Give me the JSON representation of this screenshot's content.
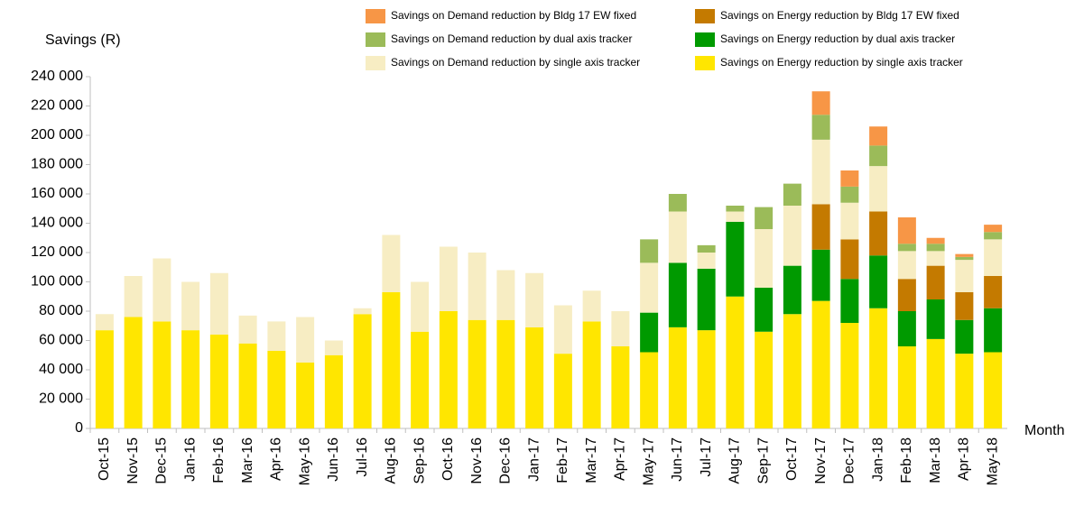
{
  "chart_data": {
    "type": "stacked_bar",
    "y_label": "Savings (R)",
    "x_label": "Month",
    "categories": [
      "Oct-15",
      "Nov-15",
      "Dec-15",
      "Jan-16",
      "Feb-16",
      "Mar-16",
      "Apr-16",
      "May-16",
      "Jun-16",
      "Jul-16",
      "Aug-16",
      "Sep-16",
      "Oct-16",
      "Nov-16",
      "Dec-16",
      "Jan-17",
      "Feb-17",
      "Mar-17",
      "Apr-17",
      "May-17",
      "Jun-17",
      "Jul-17",
      "Aug-17",
      "Sep-17",
      "Oct-17",
      "Nov-17",
      "Dec-17",
      "Jan-18",
      "Feb-18",
      "Mar-18",
      "Apr-18",
      "May-18"
    ],
    "series": [
      {
        "name": "Savings on Energy reduction by single axis tracker",
        "color": "#ffe600",
        "values": [
          67000,
          76000,
          73000,
          67000,
          64000,
          58000,
          53000,
          45000,
          50000,
          78000,
          93000,
          66000,
          80000,
          74000,
          74000,
          69000,
          51000,
          73000,
          56000,
          52000,
          69000,
          67000,
          90000,
          66000,
          78000,
          87000,
          72000,
          82000,
          56000,
          61000,
          51000,
          52000
        ]
      },
      {
        "name": "Savings on Energy reduction by dual axis tracker",
        "color": "#009a00",
        "values": [
          null,
          null,
          null,
          null,
          null,
          null,
          null,
          null,
          null,
          null,
          null,
          null,
          null,
          null,
          null,
          null,
          null,
          null,
          null,
          27000,
          44000,
          42000,
          51000,
          30000,
          33000,
          35000,
          30000,
          36000,
          24000,
          27000,
          23000,
          30000
        ]
      },
      {
        "name": "Savings on Energy reduction by Bldg 17 EW fixed",
        "color": "#c47a00",
        "values": [
          null,
          null,
          null,
          null,
          null,
          null,
          null,
          null,
          null,
          null,
          null,
          null,
          null,
          null,
          null,
          null,
          null,
          null,
          null,
          null,
          null,
          null,
          null,
          null,
          null,
          31000,
          27000,
          30000,
          22000,
          23000,
          19000,
          22000
        ]
      },
      {
        "name": "Savings on Demand reduction by single axis tracker",
        "color": "#f7edc3",
        "values": [
          11000,
          28000,
          43000,
          33000,
          42000,
          19000,
          20000,
          31000,
          10000,
          4000,
          39000,
          34000,
          44000,
          46000,
          34000,
          37000,
          33000,
          21000,
          24000,
          34000,
          35000,
          11000,
          7000,
          40000,
          41000,
          44000,
          25000,
          31000,
          19000,
          10000,
          22000,
          25000
        ]
      },
      {
        "name": "Savings on Demand reduction by dual axis tracker",
        "color": "#9bbb59",
        "values": [
          null,
          null,
          null,
          null,
          null,
          null,
          null,
          null,
          null,
          null,
          null,
          null,
          null,
          null,
          null,
          null,
          null,
          null,
          null,
          16000,
          12000,
          5000,
          4000,
          15000,
          15000,
          17000,
          11000,
          14000,
          5000,
          5000,
          2000,
          5000
        ]
      },
      {
        "name": "Savings on Demand reduction by Bldg 17 EW fixed",
        "color": "#f79646",
        "values": [
          null,
          null,
          null,
          null,
          null,
          null,
          null,
          null,
          null,
          null,
          null,
          null,
          null,
          null,
          null,
          null,
          null,
          null,
          null,
          null,
          null,
          null,
          null,
          null,
          null,
          16000,
          11000,
          13000,
          18000,
          4000,
          2000,
          5000
        ]
      }
    ],
    "ylim": [
      0,
      240000
    ],
    "yticks": [
      0,
      {
        "value": 20000,
        "label": "20 000"
      },
      {
        "value": 40000,
        "label": "40 000"
      },
      {
        "value": 60000,
        "label": "60 000"
      },
      {
        "value": 80000,
        "label": "80 000"
      },
      {
        "value": 100000,
        "label": "100 000"
      },
      {
        "value": 120000,
        "label": "120 000"
      },
      {
        "value": 140000,
        "label": "140 000"
      },
      {
        "value": 160000,
        "label": "160 000"
      },
      {
        "value": 180000,
        "label": "180 000"
      },
      {
        "value": 200000,
        "label": "200 000"
      },
      {
        "value": 220000,
        "label": "220 000"
      },
      {
        "value": 240000,
        "label": "240 000"
      }
    ],
    "grid": false,
    "legend": "top"
  }
}
